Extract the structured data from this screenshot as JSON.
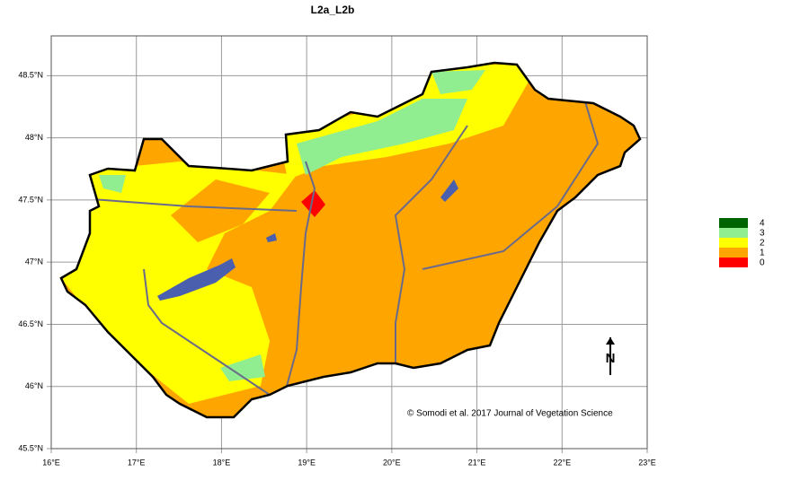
{
  "map": {
    "title": "L2a_L2b",
    "xlim": [
      16,
      23
    ],
    "ylim": [
      45.5,
      48.82
    ],
    "xticks": [
      {
        "value": 16,
        "label": "16°E"
      },
      {
        "value": 17,
        "label": "17°E"
      },
      {
        "value": 18,
        "label": "18°E"
      },
      {
        "value": 19,
        "label": "19°E"
      },
      {
        "value": 20,
        "label": "20°E"
      },
      {
        "value": 21,
        "label": "21°E"
      },
      {
        "value": 22,
        "label": "22°E"
      },
      {
        "value": 23,
        "label": "23°E"
      }
    ],
    "yticks": [
      {
        "value": 45.5,
        "label": "45.5°N"
      },
      {
        "value": 46,
        "label": "46°N"
      },
      {
        "value": 46.5,
        "label": "46.5°N"
      },
      {
        "value": 47,
        "label": "47°N"
      },
      {
        "value": 47.5,
        "label": "47.5°N"
      },
      {
        "value": 48,
        "label": "48°N"
      },
      {
        "value": 48.5,
        "label": "48.5°N"
      }
    ],
    "legend": [
      {
        "label": "4",
        "color": "#006400"
      },
      {
        "label": "3",
        "color": "#90ee90"
      },
      {
        "label": "2",
        "color": "#ffff00"
      },
      {
        "label": "1",
        "color": "#ffa500"
      },
      {
        "label": "0",
        "color": "#ff0000"
      }
    ],
    "credit": "© Somodi et al. 2017 Journal of Vegetation Science",
    "north_label": "N"
  }
}
